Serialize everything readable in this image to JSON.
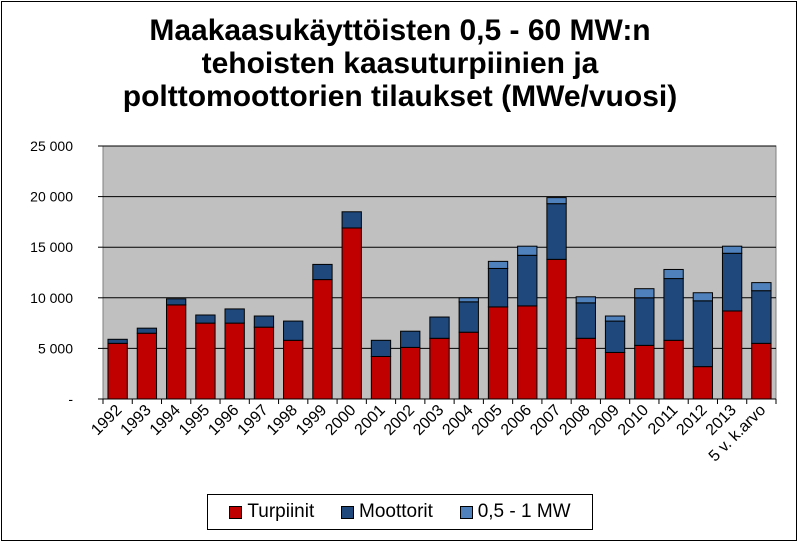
{
  "chart_data": {
    "type": "bar",
    "stacked": true,
    "title": [
      "Maakaasukäyttöisten 0,5 - 60 MW:n",
      "tehoisten kaasuturpiinien ja",
      "polttomoottorien tilaukset (MWe/vuosi)"
    ],
    "categories": [
      "1992",
      "1993",
      "1994",
      "1995",
      "1996",
      "1997",
      "1998",
      "1999",
      "2000",
      "2001",
      "2002",
      "2003",
      "2004",
      "2005",
      "2006",
      "2007",
      "2008",
      "2009",
      "2010",
      "2011",
      "2012",
      "2013",
      "5 v. k.arvo"
    ],
    "series": [
      {
        "name": "Turpiinit",
        "color": "#c00000",
        "values": [
          5500,
          6500,
          9300,
          7500,
          7500,
          7100,
          5800,
          11800,
          16900,
          4200,
          5100,
          6000,
          6600,
          9100,
          9200,
          13800,
          6000,
          4600,
          5300,
          5800,
          3200,
          8700,
          5500
        ]
      },
      {
        "name": "Moottorit",
        "color": "#1f497d",
        "values": [
          400,
          500,
          600,
          800,
          1400,
          1100,
          1900,
          1500,
          1600,
          1600,
          1600,
          2100,
          3000,
          3800,
          5000,
          5500,
          3500,
          3100,
          4700,
          6100,
          6500,
          5700,
          5200
        ]
      },
      {
        "name": "0,5 - 1 MW",
        "color": "#4f81bd",
        "values": [
          0,
          0,
          0,
          0,
          0,
          0,
          0,
          0,
          0,
          0,
          0,
          0,
          400,
          700,
          900,
          600,
          600,
          500,
          900,
          900,
          800,
          700,
          800
        ]
      }
    ],
    "yticks": [
      "-",
      "5 000",
      "10 000",
      "15 000",
      "20 000",
      "25 000"
    ],
    "ylim": [
      0,
      25000
    ],
    "grid": true,
    "legend_position": "bottom"
  }
}
